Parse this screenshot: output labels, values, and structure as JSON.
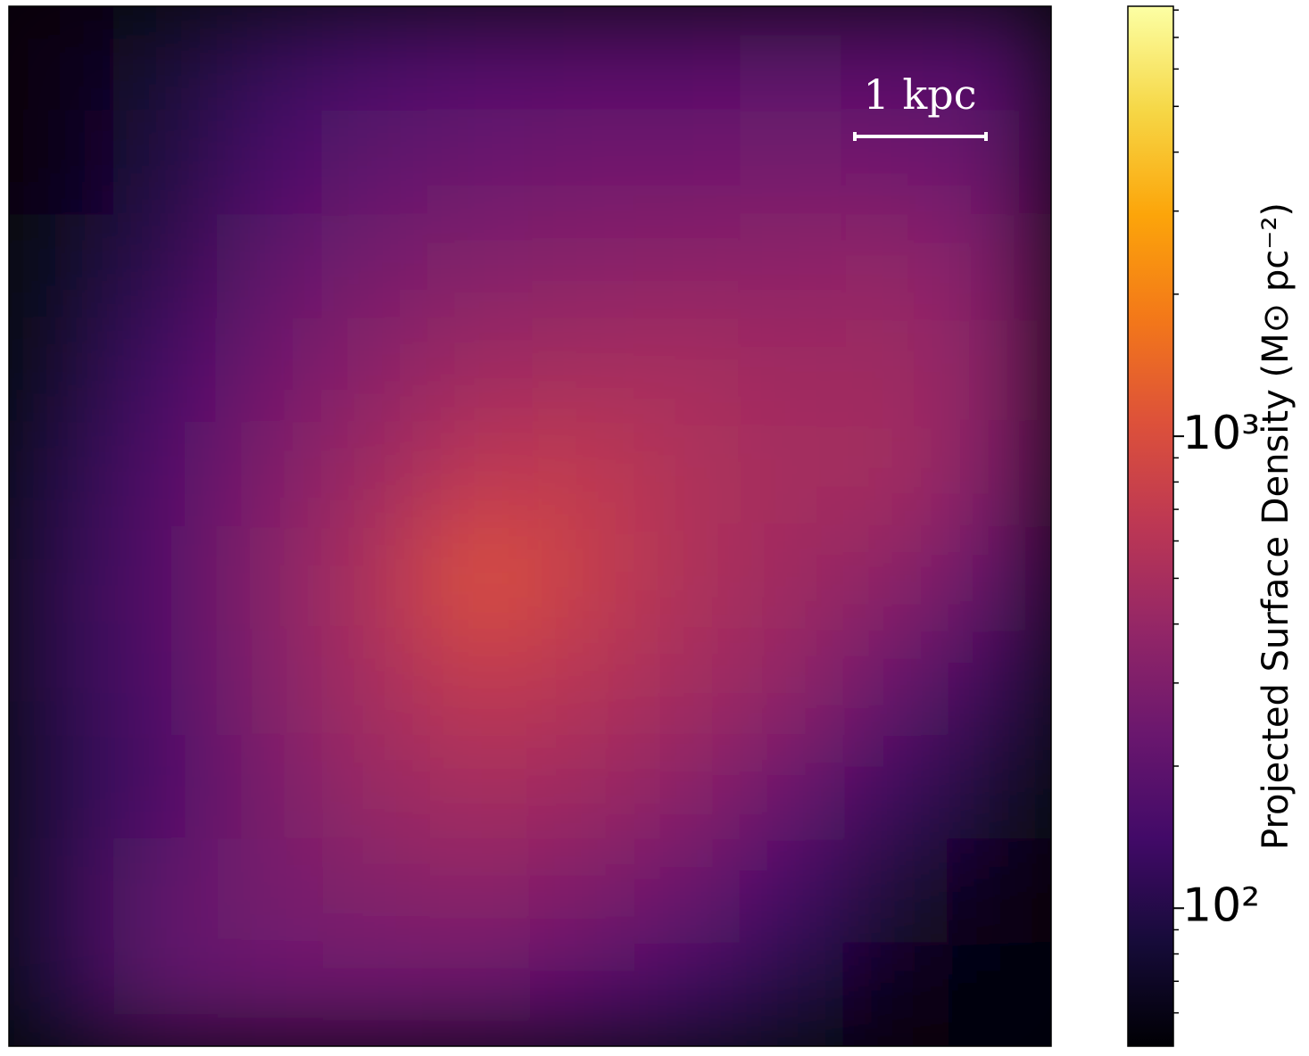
{
  "chart_data": {
    "type": "image",
    "colorbar_label": "Projected Surface Density (M⊙ pc⁻²)",
    "scalebar_label": "1 kpc",
    "colormap": "inferno",
    "log_scale": true,
    "clim": [
      51,
      8150
    ],
    "cticks": [
      {
        "value": 100,
        "label": "10²"
      },
      {
        "value": 1000,
        "label": "10³"
      }
    ],
    "minor_cticks": [
      60,
      70,
      80,
      90,
      200,
      300,
      400,
      500,
      600,
      700,
      800,
      900,
      2000,
      3000,
      4000,
      5000,
      6000,
      7000,
      8000
    ],
    "grid_values": [
      [
        60,
        80,
        120,
        150,
        170,
        180,
        180,
        190,
        180,
        170
      ],
      [
        60,
        90,
        150,
        200,
        230,
        250,
        250,
        260,
        250,
        220
      ],
      [
        70,
        110,
        200,
        270,
        320,
        340,
        350,
        360,
        380,
        300
      ],
      [
        80,
        140,
        250,
        350,
        450,
        480,
        500,
        450,
        450,
        330
      ],
      [
        100,
        170,
        300,
        450,
        650,
        700,
        550,
        480,
        480,
        300
      ],
      [
        110,
        180,
        330,
        550,
        1100,
        750,
        550,
        450,
        350,
        200
      ],
      [
        110,
        170,
        320,
        500,
        700,
        600,
        480,
        380,
        220,
        120
      ],
      [
        100,
        160,
        280,
        420,
        500,
        450,
        350,
        230,
        130,
        80
      ],
      [
        110,
        200,
        270,
        320,
        350,
        300,
        230,
        140,
        80,
        60
      ],
      [
        100,
        200,
        230,
        230,
        220,
        180,
        130,
        90,
        60,
        55
      ]
    ]
  }
}
